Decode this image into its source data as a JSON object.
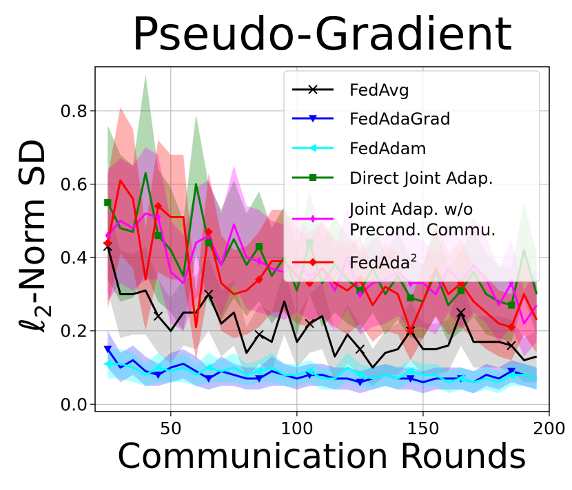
{
  "chart_data": {
    "type": "line",
    "title": "Pseudo-Gradient",
    "xlabel": "Communication Rounds",
    "ylabel": {
      "main": "ℓ",
      "sub": "2",
      "rest": "-Norm SD"
    },
    "xlim": [
      20,
      200
    ],
    "ylim": [
      -0.02,
      0.92
    ],
    "xticks": [
      50,
      100,
      150,
      200
    ],
    "yticks": [
      0.0,
      0.2,
      0.4,
      0.6,
      0.8
    ],
    "grid": true,
    "legend_position": "top-right",
    "x": [
      25,
      30,
      35,
      40,
      45,
      50,
      55,
      60,
      65,
      70,
      75,
      80,
      85,
      90,
      95,
      100,
      105,
      110,
      115,
      120,
      125,
      130,
      135,
      140,
      145,
      150,
      155,
      160,
      165,
      170,
      175,
      180,
      185,
      190,
      195
    ],
    "series": [
      {
        "name": "FedAvg",
        "color": "#000000",
        "fill": "#808080",
        "marker": "x",
        "marker_every": [
          0,
          4,
          8,
          12,
          16,
          20,
          24,
          28,
          32
        ],
        "values": [
          0.43,
          0.3,
          0.3,
          0.31,
          0.24,
          0.2,
          0.25,
          0.25,
          0.3,
          0.22,
          0.25,
          0.14,
          0.19,
          0.17,
          0.28,
          0.17,
          0.22,
          0.24,
          0.13,
          0.19,
          0.15,
          0.1,
          0.14,
          0.15,
          0.2,
          0.15,
          0.15,
          0.16,
          0.25,
          0.17,
          0.17,
          0.17,
          0.16,
          0.12,
          0.13
        ],
        "band": [
          0.12,
          0.12,
          0.11,
          0.12,
          0.1,
          0.09,
          0.09,
          0.1,
          0.1,
          0.09,
          0.09,
          0.07,
          0.08,
          0.08,
          0.09,
          0.07,
          0.08,
          0.09,
          0.07,
          0.08,
          0.07,
          0.05,
          0.06,
          0.07,
          0.08,
          0.07,
          0.07,
          0.07,
          0.09,
          0.07,
          0.07,
          0.07,
          0.07,
          0.06,
          0.07
        ]
      },
      {
        "name": "FedAdaGrad",
        "color": "#0000ff",
        "fill": "#3333ff",
        "marker": "v",
        "marker_every": [
          0,
          4,
          8,
          12,
          16,
          20,
          24,
          28,
          32
        ],
        "values": [
          0.15,
          0.1,
          0.12,
          0.09,
          0.08,
          0.1,
          0.11,
          0.09,
          0.07,
          0.09,
          0.08,
          0.07,
          0.07,
          0.09,
          0.08,
          0.07,
          0.08,
          0.08,
          0.07,
          0.07,
          0.06,
          0.07,
          0.08,
          0.07,
          0.07,
          0.06,
          0.07,
          0.07,
          0.07,
          0.06,
          0.08,
          0.07,
          0.09,
          0.08,
          0.07
        ],
        "band": [
          0.05,
          0.04,
          0.04,
          0.04,
          0.03,
          0.04,
          0.04,
          0.04,
          0.03,
          0.04,
          0.03,
          0.03,
          0.03,
          0.04,
          0.03,
          0.03,
          0.03,
          0.03,
          0.03,
          0.03,
          0.03,
          0.03,
          0.03,
          0.03,
          0.03,
          0.03,
          0.03,
          0.03,
          0.03,
          0.03,
          0.03,
          0.03,
          0.03,
          0.03,
          0.03
        ]
      },
      {
        "name": "FedAdam",
        "color": "#00ffff",
        "fill": "#00ffff",
        "marker": "<",
        "marker_every": [
          0,
          4,
          8,
          12,
          16,
          20,
          24,
          28,
          32
        ],
        "values": [
          0.11,
          0.11,
          0.1,
          0.08,
          0.1,
          0.09,
          0.1,
          0.08,
          0.1,
          0.09,
          0.1,
          0.08,
          0.09,
          0.1,
          0.08,
          0.08,
          0.09,
          0.07,
          0.07,
          0.1,
          0.08,
          0.07,
          0.08,
          0.07,
          0.09,
          0.08,
          0.08,
          0.06,
          0.07,
          0.06,
          0.07,
          0.06,
          0.08,
          0.08,
          0.07
        ],
        "band": [
          0.04,
          0.04,
          0.04,
          0.03,
          0.04,
          0.03,
          0.04,
          0.03,
          0.04,
          0.03,
          0.04,
          0.03,
          0.03,
          0.04,
          0.03,
          0.03,
          0.03,
          0.03,
          0.03,
          0.04,
          0.03,
          0.03,
          0.03,
          0.03,
          0.03,
          0.03,
          0.03,
          0.03,
          0.03,
          0.03,
          0.03,
          0.03,
          0.03,
          0.03,
          0.03
        ]
      },
      {
        "name": "Direct Joint Adap.",
        "color": "#008000",
        "fill": "#008000",
        "marker": "s",
        "marker_every": [
          0,
          4,
          8,
          12,
          16,
          20,
          24,
          28,
          32
        ],
        "values": [
          0.55,
          0.48,
          0.47,
          0.63,
          0.46,
          0.42,
          0.35,
          0.6,
          0.44,
          0.38,
          0.45,
          0.38,
          0.43,
          0.35,
          0.4,
          0.31,
          0.44,
          0.33,
          0.38,
          0.34,
          0.31,
          0.37,
          0.3,
          0.35,
          0.29,
          0.28,
          0.36,
          0.27,
          0.31,
          0.36,
          0.3,
          0.28,
          0.27,
          0.42,
          0.3
        ],
        "band": [
          0.21,
          0.2,
          0.18,
          0.27,
          0.18,
          0.17,
          0.15,
          0.19,
          0.16,
          0.15,
          0.16,
          0.14,
          0.15,
          0.13,
          0.14,
          0.12,
          0.14,
          0.12,
          0.13,
          0.12,
          0.11,
          0.12,
          0.11,
          0.12,
          0.11,
          0.1,
          0.12,
          0.1,
          0.11,
          0.12,
          0.11,
          0.1,
          0.1,
          0.13,
          0.11
        ]
      },
      {
        "name": "Joint Adap. w/o Precond. Commu.",
        "color": "#ff00ff",
        "fill": "#ff00ff",
        "marker": "d",
        "marker_every": [
          0,
          4,
          8,
          12,
          16,
          20,
          24,
          28,
          32
        ],
        "values": [
          0.46,
          0.5,
          0.48,
          0.52,
          0.51,
          0.36,
          0.33,
          0.44,
          0.46,
          0.38,
          0.49,
          0.4,
          0.39,
          0.37,
          0.36,
          0.38,
          0.35,
          0.37,
          0.31,
          0.4,
          0.3,
          0.33,
          0.34,
          0.36,
          0.33,
          0.33,
          0.3,
          0.37,
          0.33,
          0.38,
          0.34,
          0.27,
          0.33,
          0.22,
          0.27
        ],
        "band": [
          0.18,
          0.17,
          0.17,
          0.18,
          0.17,
          0.14,
          0.13,
          0.15,
          0.15,
          0.14,
          0.16,
          0.14,
          0.14,
          0.13,
          0.13,
          0.13,
          0.12,
          0.13,
          0.11,
          0.14,
          0.11,
          0.12,
          0.12,
          0.12,
          0.12,
          0.12,
          0.11,
          0.12,
          0.12,
          0.13,
          0.12,
          0.1,
          0.12,
          0.09,
          0.1
        ]
      },
      {
        "name": "FedAda²",
        "color": "#ff0000",
        "fill": "#ff0000",
        "marker": "D",
        "marker_every": [
          0,
          4,
          8,
          12,
          16,
          20,
          24,
          28,
          32
        ],
        "values": [
          0.44,
          0.61,
          0.56,
          0.34,
          0.54,
          0.51,
          0.51,
          0.21,
          0.47,
          0.33,
          0.3,
          0.31,
          0.34,
          0.39,
          0.39,
          0.35,
          0.33,
          0.37,
          0.33,
          0.31,
          0.34,
          0.27,
          0.32,
          0.3,
          0.2,
          0.28,
          0.37,
          0.3,
          0.33,
          0.28,
          0.25,
          0.22,
          0.21,
          0.3,
          0.23
        ],
        "band": [
          0.18,
          0.2,
          0.19,
          0.14,
          0.18,
          0.17,
          0.17,
          0.09,
          0.16,
          0.13,
          0.12,
          0.12,
          0.13,
          0.14,
          0.14,
          0.13,
          0.12,
          0.13,
          0.12,
          0.12,
          0.12,
          0.1,
          0.12,
          0.11,
          0.08,
          0.1,
          0.13,
          0.11,
          0.12,
          0.1,
          0.1,
          0.09,
          0.09,
          0.11,
          0.09
        ]
      }
    ]
  }
}
